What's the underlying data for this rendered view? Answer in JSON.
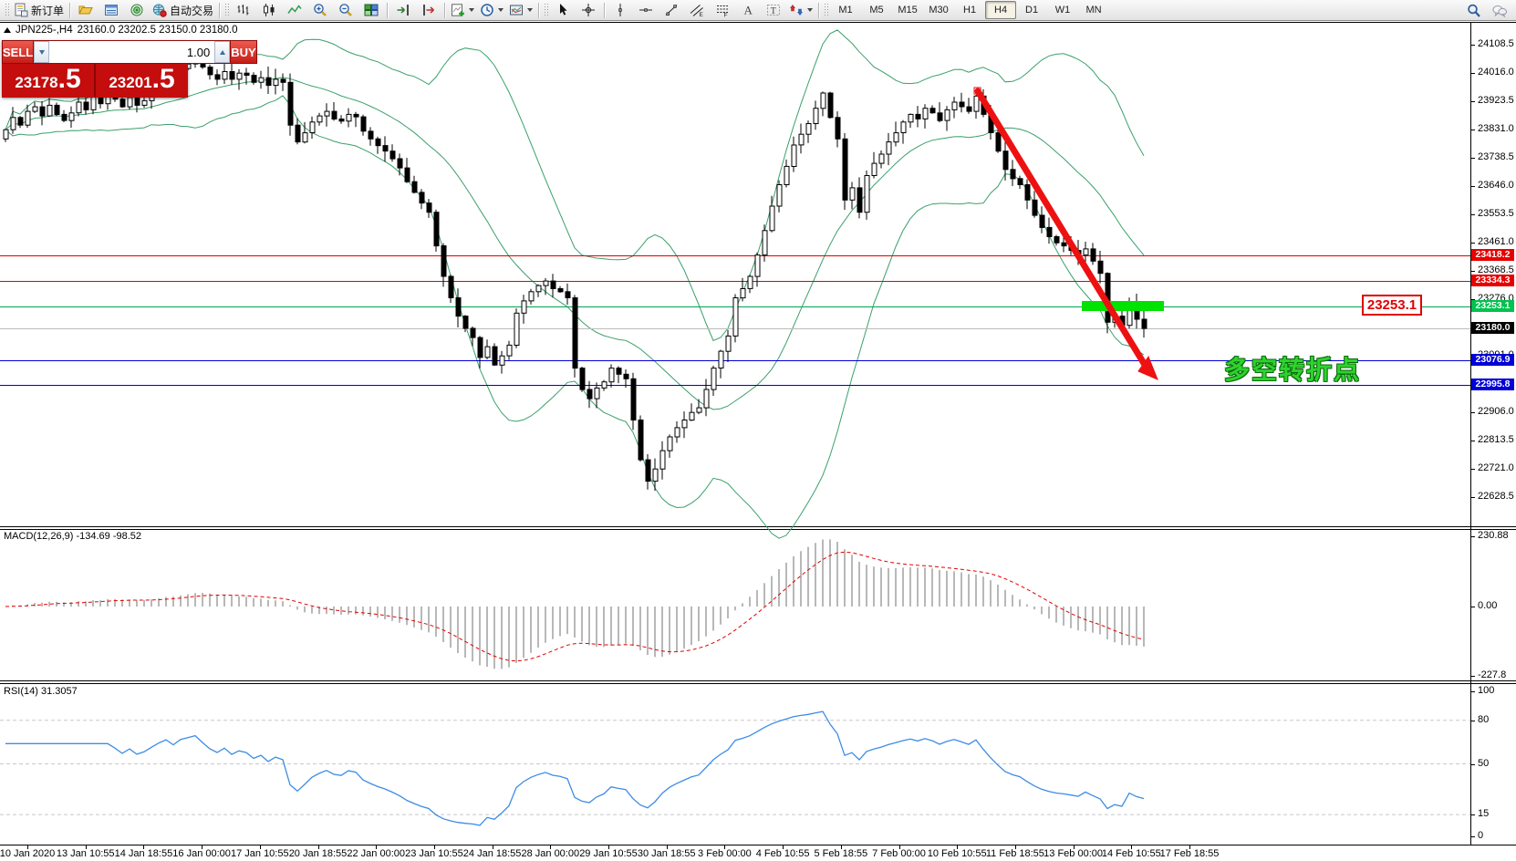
{
  "toolbar": {
    "new_order_label": "新订单",
    "autotrade_label": "自动交易",
    "left_icon_groups": [
      [
        "new-order"
      ],
      [
        "profiles",
        "market-watch",
        "navigator",
        "autotrade"
      ],
      [
        "bar-chart",
        "candlestick-chart",
        "line-chart",
        "zoom-in",
        "zoom-out",
        "tile-windows"
      ],
      [
        "auto-scroll",
        "chart-shift"
      ],
      [
        "new-chart",
        "periods",
        "templates"
      ],
      [
        "cursor",
        "crosshair"
      ],
      [
        "vertical-line",
        "horizontal-line",
        "trendline",
        "channel",
        "fibonacci",
        "text",
        "text-label",
        "arrows"
      ]
    ],
    "timeframes": [
      "M1",
      "M5",
      "M15",
      "M30",
      "H1",
      "H4",
      "D1",
      "W1",
      "MN"
    ],
    "active_timeframe": "H4",
    "right_icons": [
      "search",
      "chat"
    ]
  },
  "chart": {
    "symbol_title": "JPN225-,H4",
    "ohlc_text": "23160.0 23202.5 23150.0 23180.0"
  },
  "trade_panel": {
    "sell_label": "SELL",
    "buy_label": "BUY",
    "volume": "1.00",
    "sell_price": "23178",
    "sell_fraction": ".5",
    "buy_price": "23201",
    "buy_fraction": ".5"
  },
  "price_scale": {
    "ticks": [
      "24108.5",
      "24016.0",
      "23923.5",
      "23831.0",
      "23738.5",
      "23646.0",
      "23553.5",
      "23461.0",
      "23368.5",
      "23276.0",
      "23183.5",
      "23091.0",
      "22998.5",
      "22906.0",
      "22813.5",
      "22721.0",
      "22628.5"
    ],
    "markers": [
      {
        "label": "23418.2",
        "price": 23418.2,
        "color": "#e60000"
      },
      {
        "label": "23334.3",
        "price": 23334.3,
        "color": "#e60000"
      },
      {
        "label": "23253.1",
        "price": 23253.1,
        "color": "#00c24e"
      },
      {
        "label": "23180.0",
        "price": 23180.0,
        "color": "#000000"
      },
      {
        "label": "23076.9",
        "price": 23076.9,
        "color": "#0000d6"
      },
      {
        "label": "22995.8",
        "price": 22995.8,
        "color": "#0000d6"
      }
    ]
  },
  "hlines": [
    {
      "price": 23418.2,
      "color": "#e60000"
    },
    {
      "price": 23334.3,
      "color": "#e60000"
    },
    {
      "price": 23253.1,
      "color": "#00a651"
    },
    {
      "price": 23180.0,
      "color": "#bcbcbc"
    },
    {
      "price": 23076.9,
      "color": "#0000d6"
    },
    {
      "price": 22995.8,
      "color": "#0000d6"
    }
  ],
  "annotation": {
    "price_label": "23253.1",
    "text": "多空转折点",
    "highlight_color": "#00e200",
    "arrow_color": "#ee1111"
  },
  "macd": {
    "label": "MACD(12,26,9) -134.69 -98.52",
    "axis_labels": [
      "230.88",
      "0.00",
      "-227.8"
    ],
    "value": -134.69,
    "signal": -98.52
  },
  "rsi": {
    "label": "RSI(14) 31.3057",
    "axis_labels": [
      "100",
      "80",
      "50",
      "15",
      "0"
    ],
    "levels": [
      80,
      50,
      15
    ],
    "value": 31.3057
  },
  "time_axis": {
    "labels": [
      "10 Jan 2020",
      "13 Jan 10:55",
      "14 Jan 18:55",
      "16 Jan 00:00",
      "17 Jan 10:55",
      "20 Jan 18:55",
      "22 Jan 00:00",
      "23 Jan 10:55",
      "24 Jan 18:55",
      "28 Jan 00:00",
      "29 Jan 10:55",
      "30 Jan 18:55",
      "3 Feb 00:00",
      "4 Feb 10:55",
      "5 Feb 18:55",
      "7 Feb 00:00",
      "10 Feb 10:55",
      "11 Feb 18:55",
      "13 Feb 00:00",
      "14 Feb 10:55",
      "17 Feb 18:55"
    ]
  },
  "chart_data": {
    "type": "candlestick",
    "symbol": "JPN225-",
    "period": "H4",
    "current_ohlc": {
      "open": 23160.0,
      "high": 23202.5,
      "low": 23150.0,
      "close": 23180.0
    },
    "bid": "23178.5",
    "ask": "23201.5",
    "indicators": [
      "Bollinger Bands",
      "MACD(12,26,9)",
      "RSI(14)"
    ],
    "price_range": [
      22628.5,
      24108.5
    ],
    "first_open": 23800,
    "closes": [
      23830,
      23870,
      23845,
      23890,
      23905,
      23875,
      23910,
      23880,
      23860,
      23885,
      23920,
      23895,
      23940,
      23915,
      23950,
      23930,
      23905,
      23935,
      23910,
      23925,
      23955,
      23985,
      24010,
      23990,
      24030,
      24045,
      24060,
      24035,
      24010,
      23995,
      24020,
      23995,
      24015,
      24008,
      23985,
      24000,
      23975,
      23995,
      23985,
      23845,
      23790,
      23820,
      23855,
      23875,
      23890,
      23865,
      23858,
      23880,
      23872,
      23825,
      23800,
      23778,
      23760,
      23735,
      23705,
      23660,
      23625,
      23590,
      23560,
      23450,
      23350,
      23280,
      23220,
      23180,
      23150,
      23085,
      23120,
      23060,
      23090,
      23125,
      23230,
      23270,
      23300,
      23320,
      23335,
      23310,
      23300,
      23280,
      23050,
      22980,
      22950,
      22985,
      23005,
      23050,
      23030,
      23015,
      22880,
      22750,
      22680,
      22720,
      22780,
      22825,
      22855,
      22880,
      22905,
      22920,
      22980,
      23050,
      23105,
      23155,
      23280,
      23310,
      23350,
      23420,
      23500,
      23580,
      23650,
      23710,
      23780,
      23815,
      23850,
      23900,
      23950,
      23870,
      23800,
      23600,
      23640,
      23560,
      23680,
      23720,
      23750,
      23790,
      23820,
      23855,
      23880,
      23865,
      23900,
      23885,
      23860,
      23895,
      23920,
      23905,
      23890,
      23940,
      23880,
      23820,
      23760,
      23700,
      23670,
      23650,
      23600,
      23550,
      23510,
      23480,
      23460,
      23450,
      23435,
      23420,
      23440,
      23400,
      23360,
      23200,
      23220,
      23190,
      23260,
      23210,
      23180
    ]
  }
}
